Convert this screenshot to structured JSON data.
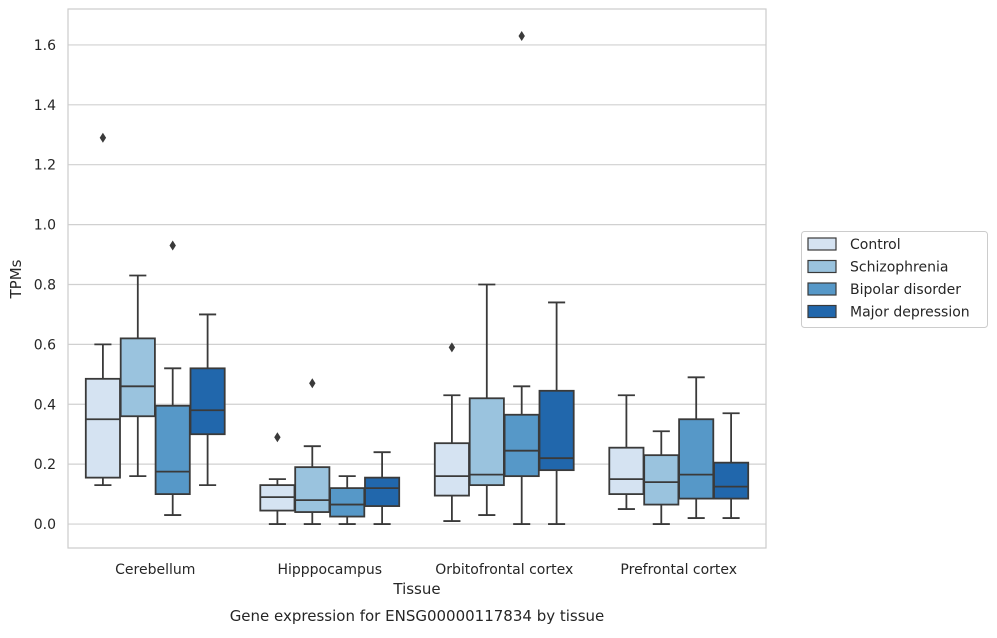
{
  "chart_data": {
    "type": "boxplot",
    "title": "",
    "caption": "Gene expression for ENSG00000117834 by tissue",
    "xlabel": "Tissue",
    "ylabel": "TPMs",
    "ylim": [
      -0.08,
      1.72
    ],
    "yticks": [
      "0.0",
      "0.2",
      "0.4",
      "0.6",
      "0.8",
      "1.0",
      "1.2",
      "1.4",
      "1.6"
    ],
    "grid": "horizontal",
    "legend_position": "right",
    "categories": [
      "Cerebellum",
      "Hipppocampus",
      "Orbitofrontal cortex",
      "Prefrontal cortex"
    ],
    "series": [
      {
        "name": "Control",
        "color": "#d5e3f2",
        "boxes": [
          {
            "whislo": 0.13,
            "q1": 0.155,
            "med": 0.35,
            "q3": 0.485,
            "whishi": 0.6,
            "fliers": [
              1.29
            ]
          },
          {
            "whislo": 0.0,
            "q1": 0.045,
            "med": 0.09,
            "q3": 0.13,
            "whishi": 0.15,
            "fliers": [
              0.29
            ]
          },
          {
            "whislo": 0.01,
            "q1": 0.095,
            "med": 0.16,
            "q3": 0.27,
            "whishi": 0.43,
            "fliers": [
              0.59
            ]
          },
          {
            "whislo": 0.05,
            "q1": 0.1,
            "med": 0.15,
            "q3": 0.255,
            "whishi": 0.43,
            "fliers": []
          }
        ]
      },
      {
        "name": "Schizophrenia",
        "color": "#9ac3de",
        "boxes": [
          {
            "whislo": 0.16,
            "q1": 0.36,
            "med": 0.46,
            "q3": 0.62,
            "whishi": 0.83,
            "fliers": []
          },
          {
            "whislo": 0.0,
            "q1": 0.04,
            "med": 0.08,
            "q3": 0.19,
            "whishi": 0.26,
            "fliers": [
              0.47
            ]
          },
          {
            "whislo": 0.03,
            "q1": 0.13,
            "med": 0.165,
            "q3": 0.42,
            "whishi": 0.8,
            "fliers": []
          },
          {
            "whislo": 0.0,
            "q1": 0.065,
            "med": 0.14,
            "q3": 0.23,
            "whishi": 0.31,
            "fliers": []
          }
        ]
      },
      {
        "name": "Bipolar disorder",
        "color": "#5698c8",
        "boxes": [
          {
            "whislo": 0.03,
            "q1": 0.1,
            "med": 0.175,
            "q3": 0.395,
            "whishi": 0.52,
            "fliers": [
              0.93
            ]
          },
          {
            "whislo": 0.0,
            "q1": 0.025,
            "med": 0.065,
            "q3": 0.12,
            "whishi": 0.16,
            "fliers": []
          },
          {
            "whislo": 0.0,
            "q1": 0.16,
            "med": 0.245,
            "q3": 0.365,
            "whishi": 0.46,
            "fliers": [
              1.63
            ]
          },
          {
            "whislo": 0.02,
            "q1": 0.085,
            "med": 0.165,
            "q3": 0.35,
            "whishi": 0.49,
            "fliers": []
          }
        ]
      },
      {
        "name": "Major depression",
        "color": "#2167ac",
        "boxes": [
          {
            "whislo": 0.13,
            "q1": 0.3,
            "med": 0.38,
            "q3": 0.52,
            "whishi": 0.7,
            "fliers": []
          },
          {
            "whislo": 0.0,
            "q1": 0.06,
            "med": 0.12,
            "q3": 0.155,
            "whishi": 0.24,
            "fliers": []
          },
          {
            "whislo": 0.0,
            "q1": 0.18,
            "med": 0.22,
            "q3": 0.445,
            "whishi": 0.74,
            "fliers": []
          },
          {
            "whislo": 0.02,
            "q1": 0.085,
            "med": 0.125,
            "q3": 0.205,
            "whishi": 0.37,
            "fliers": []
          }
        ]
      }
    ]
  }
}
